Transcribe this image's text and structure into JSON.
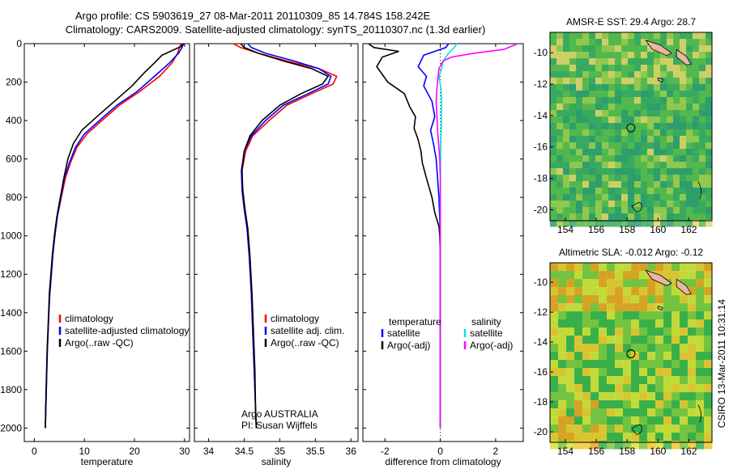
{
  "title": {
    "line1": "Argo profile: CS 5903619_27 08-Mar-2011 20110309_85 14.784S 158.242E",
    "line2": "Climatology: CARS2009. Satellite-adjusted climatology: synTS_20110307.nc (1.3d earlier)"
  },
  "footer": "CSIRO 13-Mar-2011 10:31:14",
  "colors": {
    "climatology": "#ff0000",
    "satellite": "#0000ff",
    "argo": "#000000",
    "temp_satellite": "#0000ff",
    "sal_satellite": "#00e5e5",
    "sal_argo": "#ff00ff"
  },
  "chart_data": [
    {
      "type": "line",
      "name": "temperature-panel",
      "xlabel": "temperature",
      "ylabel": "",
      "xlim": [
        -2,
        31
      ],
      "ylim": [
        2070,
        0
      ],
      "xticks": [
        0,
        10,
        20,
        30
      ],
      "yticks": [
        0,
        200,
        400,
        600,
        800,
        1000,
        1200,
        1400,
        1600,
        1800,
        2000
      ],
      "legend": [
        "climatology",
        "satellite-adjusted climatology",
        "Argo(..raw -QC)"
      ],
      "legend_position": "center-bottom",
      "series": [
        {
          "name": "climatology",
          "color": "#ff0000",
          "points": [
            [
              29.3,
              0
            ],
            [
              29.0,
              20
            ],
            [
              28.6,
              50
            ],
            [
              27.5,
              100
            ],
            [
              25.0,
              170
            ],
            [
              21.0,
              250
            ],
            [
              17.0,
              320
            ],
            [
              13.5,
              400
            ],
            [
              10.5,
              470
            ],
            [
              8.5,
              540
            ],
            [
              7.2,
              620
            ],
            [
              6.2,
              700
            ],
            [
              5.4,
              800
            ],
            [
              4.6,
              900
            ],
            [
              4.1,
              1000
            ],
            [
              3.7,
              1100
            ],
            [
              3.4,
              1200
            ],
            [
              3.1,
              1300
            ],
            [
              2.9,
              1400
            ],
            [
              2.75,
              1500
            ],
            [
              2.6,
              1600
            ],
            [
              2.5,
              1700
            ],
            [
              2.4,
              1800
            ],
            [
              2.3,
              1900
            ],
            [
              2.2,
              2000
            ]
          ]
        },
        {
          "name": "satellite-adjusted climatology",
          "color": "#0000ff",
          "points": [
            [
              29.8,
              0
            ],
            [
              29.5,
              20
            ],
            [
              28.8,
              50
            ],
            [
              27.0,
              100
            ],
            [
              24.0,
              170
            ],
            [
              20.5,
              250
            ],
            [
              16.5,
              320
            ],
            [
              13.0,
              400
            ],
            [
              10.0,
              470
            ],
            [
              8.2,
              540
            ],
            [
              7.0,
              620
            ],
            [
              6.0,
              700
            ],
            [
              5.3,
              800
            ],
            [
              4.6,
              900
            ],
            [
              4.1,
              1000
            ],
            [
              3.7,
              1100
            ],
            [
              3.4,
              1200
            ],
            [
              3.1,
              1300
            ],
            [
              2.9,
              1400
            ],
            [
              2.75,
              1500
            ],
            [
              2.6,
              1600
            ],
            [
              2.5,
              1700
            ],
            [
              2.4,
              1800
            ],
            [
              2.3,
              1900
            ],
            [
              2.2,
              2000
            ]
          ]
        },
        {
          "name": "Argo(..raw -QC)",
          "color": "#000000",
          "points": [
            [
              29.6,
              0
            ],
            [
              29.3,
              15
            ],
            [
              28.0,
              30
            ],
            [
              25.5,
              60
            ],
            [
              24.0,
              100
            ],
            [
              22.0,
              150
            ],
            [
              19.5,
              220
            ],
            [
              16.0,
              300
            ],
            [
              12.5,
              380
            ],
            [
              9.5,
              450
            ],
            [
              7.8,
              520
            ],
            [
              6.7,
              600
            ],
            [
              5.9,
              700
            ],
            [
              5.2,
              800
            ],
            [
              4.5,
              900
            ],
            [
              4.0,
              1000
            ],
            [
              3.6,
              1100
            ],
            [
              3.3,
              1200
            ],
            [
              3.0,
              1300
            ],
            [
              2.85,
              1400
            ],
            [
              2.7,
              1500
            ],
            [
              2.55,
              1600
            ],
            [
              2.45,
              1700
            ],
            [
              2.35,
              1800
            ],
            [
              2.25,
              1900
            ],
            [
              2.2,
              2000
            ]
          ]
        }
      ]
    },
    {
      "type": "line",
      "name": "salinity-panel",
      "xlabel": "salinity",
      "ylabel": "",
      "xlim": [
        33.8,
        36.1
      ],
      "ylim": [
        2070,
        0
      ],
      "xticks": [
        34,
        34.5,
        35,
        35.5,
        36
      ],
      "yticks": [],
      "legend": [
        "climatology",
        "satellite adj. clim.",
        "Argo(..raw -QC)"
      ],
      "legend_position": "center-bottom",
      "annotation": [
        "Argo AUSTRALIA",
        "PI: Susan Wijffels"
      ],
      "series": [
        {
          "name": "climatology",
          "color": "#ff0000",
          "points": [
            [
              34.35,
              0
            ],
            [
              34.45,
              20
            ],
            [
              34.7,
              50
            ],
            [
              35.1,
              90
            ],
            [
              35.55,
              130
            ],
            [
              35.8,
              170
            ],
            [
              35.75,
              210
            ],
            [
              35.45,
              260
            ],
            [
              35.1,
              320
            ],
            [
              34.85,
              400
            ],
            [
              34.62,
              480
            ],
            [
              34.52,
              560
            ],
            [
              34.47,
              660
            ],
            [
              34.47,
              760
            ],
            [
              34.5,
              860
            ],
            [
              34.54,
              960
            ],
            [
              34.57,
              1100
            ],
            [
              34.6,
              1300
            ],
            [
              34.62,
              1500
            ],
            [
              34.64,
              1700
            ],
            [
              34.66,
              1900
            ],
            [
              34.67,
              2000
            ]
          ]
        },
        {
          "name": "satellite adj. clim.",
          "color": "#0000ff",
          "points": [
            [
              34.55,
              0
            ],
            [
              34.6,
              20
            ],
            [
              34.8,
              50
            ],
            [
              35.2,
              90
            ],
            [
              35.55,
              130
            ],
            [
              35.72,
              170
            ],
            [
              35.68,
              210
            ],
            [
              35.4,
              260
            ],
            [
              35.05,
              320
            ],
            [
              34.8,
              400
            ],
            [
              34.6,
              480
            ],
            [
              34.5,
              560
            ],
            [
              34.46,
              660
            ],
            [
              34.47,
              760
            ],
            [
              34.5,
              860
            ],
            [
              34.54,
              960
            ],
            [
              34.57,
              1100
            ],
            [
              34.6,
              1300
            ],
            [
              34.62,
              1500
            ],
            [
              34.64,
              1700
            ],
            [
              34.66,
              1900
            ],
            [
              34.67,
              2000
            ]
          ]
        },
        {
          "name": "Argo(..raw -QC)",
          "color": "#000000",
          "points": [
            [
              34.45,
              0
            ],
            [
              34.5,
              20
            ],
            [
              34.7,
              50
            ],
            [
              35.05,
              90
            ],
            [
              35.45,
              130
            ],
            [
              35.68,
              170
            ],
            [
              35.6,
              210
            ],
            [
              35.3,
              260
            ],
            [
              35.0,
              320
            ],
            [
              34.75,
              400
            ],
            [
              34.58,
              480
            ],
            [
              34.5,
              560
            ],
            [
              34.47,
              660
            ],
            [
              34.48,
              760
            ],
            [
              34.51,
              860
            ],
            [
              34.55,
              960
            ],
            [
              34.58,
              1100
            ],
            [
              34.61,
              1300
            ],
            [
              34.63,
              1500
            ],
            [
              34.65,
              1700
            ],
            [
              34.66,
              1900
            ],
            [
              34.67,
              2000
            ]
          ]
        }
      ]
    },
    {
      "type": "line",
      "name": "difference-panel",
      "xlabel": "difference from climatology",
      "ylabel": "",
      "xlim": [
        -2.8,
        3.0
      ],
      "ylim": [
        2070,
        0
      ],
      "xticks": [
        -2,
        0,
        2
      ],
      "yticks": [],
      "legend_groups": [
        {
          "title": "temperature",
          "items": [
            "satellite",
            "Argo(-adj)"
          ]
        },
        {
          "title": "salinity",
          "items": [
            "satellite",
            "Argo(-adj)"
          ]
        }
      ],
      "legend_position": "center-bottom",
      "series": [
        {
          "name": "satellite",
          "group": "temperature",
          "color": "#0000ff",
          "points": [
            [
              0.3,
              0
            ],
            [
              0.2,
              20
            ],
            [
              -0.6,
              60
            ],
            [
              -0.8,
              120
            ],
            [
              -0.5,
              170
            ],
            [
              -0.6,
              220
            ],
            [
              -0.3,
              300
            ],
            [
              -0.2,
              380
            ],
            [
              -0.35,
              450
            ],
            [
              -0.25,
              520
            ],
            [
              -0.15,
              600
            ],
            [
              -0.1,
              700
            ],
            [
              -0.05,
              800
            ],
            [
              0,
              1000
            ],
            [
              0,
              1500
            ],
            [
              0,
              2000
            ]
          ]
        },
        {
          "name": "Argo(-adj)",
          "group": "temperature",
          "color": "#000000",
          "points": [
            [
              -2.6,
              0
            ],
            [
              -2.4,
              20
            ],
            [
              -1.5,
              40
            ],
            [
              -2.1,
              70
            ],
            [
              -2.3,
              120
            ],
            [
              -1.9,
              200
            ],
            [
              -1.3,
              260
            ],
            [
              -1.1,
              330
            ],
            [
              -0.9,
              380
            ],
            [
              -0.95,
              440
            ],
            [
              -0.8,
              500
            ],
            [
              -0.7,
              560
            ],
            [
              -0.65,
              620
            ],
            [
              -0.5,
              700
            ],
            [
              -0.3,
              800
            ],
            [
              -0.2,
              880
            ],
            [
              -0.05,
              950
            ],
            [
              -0.02,
              1000
            ],
            [
              0,
              1100
            ],
            [
              0,
              1500
            ],
            [
              0,
              2000
            ]
          ]
        },
        {
          "name": "satellite",
          "group": "salinity",
          "color": "#00e5e5",
          "points": [
            [
              0.6,
              0
            ],
            [
              0.5,
              20
            ],
            [
              0.3,
              50
            ],
            [
              0.1,
              90
            ],
            [
              0.05,
              130
            ],
            [
              -0.05,
              170
            ],
            [
              0.02,
              230
            ],
            [
              0.05,
              300
            ],
            [
              0.04,
              400
            ],
            [
              0.02,
              500
            ],
            [
              0.01,
              600
            ],
            [
              0,
              800
            ],
            [
              0,
              1200
            ],
            [
              0,
              2000
            ]
          ]
        },
        {
          "name": "Argo(-adj)",
          "group": "salinity",
          "color": "#ff00ff",
          "points": [
            [
              2.8,
              0
            ],
            [
              2.3,
              30
            ],
            [
              1.2,
              50
            ],
            [
              0.4,
              70
            ],
            [
              0.1,
              90
            ],
            [
              -0.05,
              130
            ],
            [
              -0.08,
              170
            ],
            [
              -0.12,
              230
            ],
            [
              -0.15,
              300
            ],
            [
              -0.12,
              380
            ],
            [
              -0.1,
              450
            ],
            [
              -0.06,
              520
            ],
            [
              -0.02,
              600
            ],
            [
              0,
              700
            ],
            [
              0,
              1000
            ],
            [
              0,
              2000
            ]
          ]
        }
      ]
    },
    {
      "type": "heatmap",
      "name": "sst-map",
      "title": "AMSR-E SST: 29.4  Argo: 28.7",
      "xlim": [
        153,
        163.5
      ],
      "ylim": [
        -20.7,
        -8.7
      ],
      "xticks": [
        154,
        156,
        158,
        160,
        162
      ],
      "yticks": [
        -10,
        -12,
        -14,
        -16,
        -18,
        -20
      ],
      "marker": {
        "lon": 158.242,
        "lat": -14.784
      }
    },
    {
      "type": "heatmap",
      "name": "sla-map",
      "title": "Altimetric SLA: -0.012  Argo: -0.12",
      "xlim": [
        153,
        163.5
      ],
      "ylim": [
        -20.7,
        -8.7
      ],
      "xticks": [
        154,
        156,
        158,
        160,
        162
      ],
      "yticks": [
        -10,
        -12,
        -14,
        -16,
        -18,
        -20
      ],
      "marker": {
        "lon": 158.242,
        "lat": -14.784
      }
    }
  ]
}
